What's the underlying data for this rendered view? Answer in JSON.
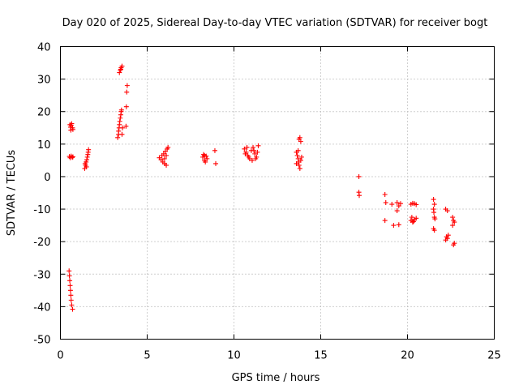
{
  "chart_data": {
    "type": "scatter",
    "title": "Day 020 of 2025, Sidereal Day-to-day VTEC variation (SDTVAR) for receiver bogt",
    "xlabel": "GPS time / hours",
    "ylabel": "SDTVAR / TECUs",
    "xlim": [
      0,
      25
    ],
    "ylim": [
      -50,
      40
    ],
    "x_ticks": [
      0,
      5,
      10,
      15,
      20,
      25
    ],
    "y_ticks": [
      -50,
      -40,
      -30,
      -20,
      -10,
      0,
      10,
      20,
      30,
      40
    ],
    "x_tick_labels": [
      "0",
      "5",
      "10",
      "15",
      "20",
      "25"
    ],
    "y_tick_labels": [
      "-50",
      "-40",
      "-30",
      "-20",
      "-10",
      "0",
      "10",
      "20",
      "30",
      "40"
    ],
    "grid": true,
    "marker": "plus",
    "color": "#ff0000",
    "series": [
      {
        "name": "SDTVAR",
        "points": [
          [
            0.55,
            16.0
          ],
          [
            0.58,
            15.2
          ],
          [
            0.6,
            14.3
          ],
          [
            0.62,
            15.8
          ],
          [
            0.65,
            16.3
          ],
          [
            0.7,
            15.0
          ],
          [
            0.72,
            14.5
          ],
          [
            0.52,
            6.2
          ],
          [
            0.56,
            5.8
          ],
          [
            0.62,
            6.3
          ],
          [
            0.68,
            5.9
          ],
          [
            0.72,
            6.1
          ],
          [
            0.5,
            -29.0
          ],
          [
            0.52,
            -30.5
          ],
          [
            0.54,
            -32.0
          ],
          [
            0.56,
            -33.5
          ],
          [
            0.58,
            -35.0
          ],
          [
            0.6,
            -36.5
          ],
          [
            0.62,
            -38.0
          ],
          [
            0.65,
            -39.5
          ],
          [
            0.7,
            -40.8
          ],
          [
            1.4,
            2.5
          ],
          [
            1.45,
            3.5
          ],
          [
            1.48,
            4.5
          ],
          [
            1.52,
            5.2
          ],
          [
            1.55,
            6.0
          ],
          [
            1.58,
            6.8
          ],
          [
            1.6,
            7.5
          ],
          [
            1.62,
            8.3
          ],
          [
            1.5,
            3.0
          ],
          [
            1.42,
            4.0
          ],
          [
            3.3,
            12.0
          ],
          [
            3.35,
            13.0
          ],
          [
            3.35,
            14.0
          ],
          [
            3.38,
            15.0
          ],
          [
            3.4,
            16.0
          ],
          [
            3.42,
            17.0
          ],
          [
            3.45,
            18.0
          ],
          [
            3.48,
            19.0
          ],
          [
            3.5,
            20.0
          ],
          [
            3.52,
            20.5
          ],
          [
            3.55,
            13.0
          ],
          [
            3.58,
            15.0
          ],
          [
            3.4,
            32.0
          ],
          [
            3.45,
            32.8
          ],
          [
            3.5,
            33.5
          ],
          [
            3.55,
            34.0
          ],
          [
            3.48,
            33.0
          ],
          [
            3.8,
            21.5
          ],
          [
            3.82,
            26.0
          ],
          [
            3.85,
            28.0
          ],
          [
            3.78,
            15.5
          ],
          [
            5.7,
            5.8
          ],
          [
            5.8,
            5.2
          ],
          [
            5.9,
            4.5
          ],
          [
            6.0,
            4.0
          ],
          [
            6.1,
            3.5
          ],
          [
            5.85,
            6.5
          ],
          [
            5.95,
            7.0
          ],
          [
            6.05,
            7.8
          ],
          [
            6.15,
            8.5
          ],
          [
            6.2,
            9.0
          ],
          [
            6.1,
            6.5
          ],
          [
            6.0,
            5.5
          ],
          [
            8.2,
            6.0
          ],
          [
            8.25,
            6.8
          ],
          [
            8.3,
            5.0
          ],
          [
            8.35,
            4.5
          ],
          [
            8.4,
            6.3
          ],
          [
            8.45,
            5.5
          ],
          [
            8.3,
            6.5
          ],
          [
            8.9,
            8.0
          ],
          [
            8.95,
            4.0
          ],
          [
            10.6,
            8.5
          ],
          [
            10.7,
            7.5
          ],
          [
            10.8,
            6.5
          ],
          [
            10.9,
            5.5
          ],
          [
            11.0,
            8.0
          ],
          [
            11.1,
            9.0
          ],
          [
            11.2,
            7.0
          ],
          [
            11.3,
            6.0
          ],
          [
            11.4,
            9.5
          ],
          [
            10.75,
            9.0
          ],
          [
            10.85,
            6.0
          ],
          [
            11.05,
            5.0
          ],
          [
            11.15,
            8.0
          ],
          [
            11.25,
            5.5
          ],
          [
            11.35,
            7.5
          ],
          [
            10.65,
            7.0
          ],
          [
            13.6,
            7.5
          ],
          [
            13.65,
            6.5
          ],
          [
            13.7,
            5.5
          ],
          [
            13.72,
            4.5
          ],
          [
            13.75,
            3.5
          ],
          [
            13.8,
            2.5
          ],
          [
            13.85,
            5.0
          ],
          [
            13.9,
            6.0
          ],
          [
            13.6,
            4.0
          ],
          [
            13.75,
            11.5
          ],
          [
            13.8,
            12.0
          ],
          [
            13.85,
            10.8
          ],
          [
            13.7,
            8.0
          ],
          [
            17.2,
            0.0
          ],
          [
            17.2,
            -4.8
          ],
          [
            17.22,
            -5.8
          ],
          [
            18.7,
            -5.5
          ],
          [
            18.75,
            -8.0
          ],
          [
            18.7,
            -13.5
          ],
          [
            19.1,
            -8.5
          ],
          [
            19.2,
            -15.0
          ],
          [
            19.4,
            -8.0
          ],
          [
            19.5,
            -9.0
          ],
          [
            19.6,
            -8.3
          ],
          [
            19.5,
            -14.8
          ],
          [
            19.4,
            -10.5
          ],
          [
            20.2,
            -8.5
          ],
          [
            20.3,
            -8.2
          ],
          [
            20.4,
            -8.3
          ],
          [
            20.5,
            -8.6
          ],
          [
            20.2,
            -13.5
          ],
          [
            20.3,
            -14.0
          ],
          [
            20.4,
            -13.2
          ],
          [
            20.5,
            -12.8
          ],
          [
            20.25,
            -12.5
          ],
          [
            20.35,
            -13.8
          ],
          [
            21.5,
            -7.0
          ],
          [
            21.55,
            -8.5
          ],
          [
            21.5,
            -10.0
          ],
          [
            21.52,
            -11.0
          ],
          [
            21.55,
            -12.5
          ],
          [
            21.58,
            -13.0
          ],
          [
            21.5,
            -16.0
          ],
          [
            21.55,
            -16.5
          ],
          [
            22.2,
            -10.0
          ],
          [
            22.3,
            -10.5
          ],
          [
            22.25,
            -18.5
          ],
          [
            22.3,
            -19.0
          ],
          [
            22.35,
            -18.0
          ],
          [
            22.2,
            -19.5
          ],
          [
            22.6,
            -12.5
          ],
          [
            22.65,
            -13.5
          ],
          [
            22.7,
            -14.0
          ],
          [
            22.6,
            -15.0
          ],
          [
            22.7,
            -20.5
          ],
          [
            22.65,
            -21.0
          ]
        ]
      }
    ]
  }
}
